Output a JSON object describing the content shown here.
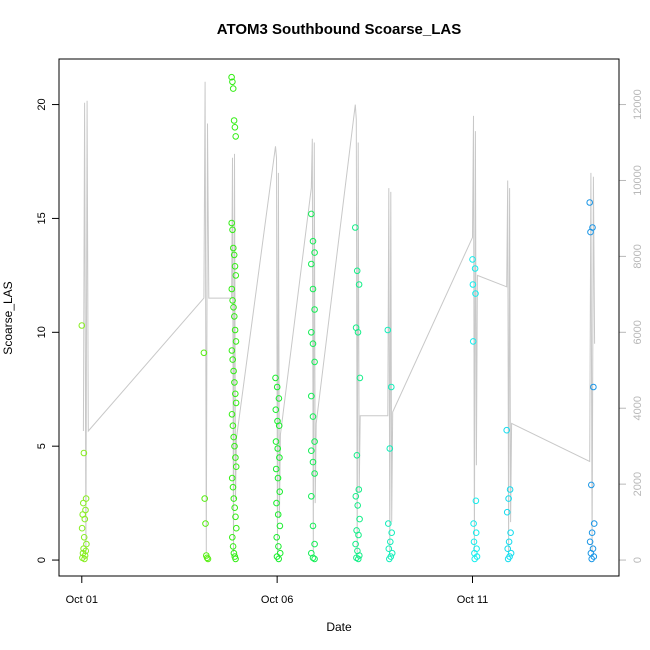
{
  "chart_data": {
    "type": "scatter",
    "title": "ATOM3 Southbound Scoarse_LAS",
    "xlabel": "Date",
    "ylabel": "Scoarse_LAS",
    "xlim": [
      "2014-09-30T10:00",
      "2014-10-14T18:00"
    ],
    "ylim": [
      -0.7,
      22
    ],
    "x_ticks": [
      {
        "value": "2014-10-01T00:00",
        "label": "Oct 01"
      },
      {
        "value": "2014-10-06T00:00",
        "label": "Oct 06"
      },
      {
        "value": "2014-10-11T00:00",
        "label": "Oct 11"
      }
    ],
    "y_ticks": [
      0,
      5,
      10,
      15,
      20
    ],
    "y2_ticks": [
      0,
      2000,
      4000,
      6000,
      8000,
      10000,
      12000
    ],
    "y2lim": [
      -420,
      13200
    ],
    "grid": false,
    "colors": {
      "primary_axis": "#000000",
      "secondary_axis": "#b8b8b8",
      "secondary_line": "#c8c8c8"
    },
    "bursts": [
      {
        "start": "2014-10-01T00:00",
        "values": [
          10.3,
          4.7,
          2.7,
          2.5,
          2.2,
          2.0,
          1.8,
          1.4,
          1.0,
          0.7,
          0.5,
          0.4,
          0.3,
          0.2,
          0.1,
          0.05
        ],
        "color": "#88ee22"
      },
      {
        "start": "2014-10-04T03:00",
        "values": [
          9.1,
          2.7,
          1.6,
          0.2,
          0.1,
          0.05
        ],
        "color": "#55ee10"
      },
      {
        "start": "2014-10-04T20:00",
        "values": [
          21.2,
          21.0,
          20.7,
          19.3,
          19.0,
          18.6,
          14.8,
          14.5,
          13.7,
          13.4,
          12.9,
          12.5,
          11.9,
          11.4,
          11.1,
          10.7,
          10.1,
          9.6,
          9.2,
          8.8,
          8.3,
          7.8,
          7.3,
          6.9,
          6.4,
          5.9,
          5.4,
          5.0,
          4.5,
          4.1,
          3.6,
          3.2,
          2.7,
          2.3,
          1.9,
          1.4,
          1.0,
          0.6,
          0.3,
          0.15,
          0.05
        ],
        "color": "#33ee14"
      },
      {
        "start": "2014-10-05T23:00",
        "values": [
          8.0,
          7.6,
          7.1,
          6.6,
          6.1,
          5.9,
          5.2,
          4.9,
          4.5,
          4.0,
          3.6,
          3.0,
          2.5,
          2.0,
          1.5,
          1.0,
          0.6,
          0.3,
          0.15,
          0.05
        ],
        "color": "#18ee2c"
      },
      {
        "start": "2014-10-06T21:00",
        "values": [
          15.2,
          14.0,
          13.5,
          13.0,
          11.9,
          11.0,
          10.0,
          9.5,
          8.7,
          7.2,
          6.3,
          5.2,
          4.8,
          4.3,
          3.8,
          2.8,
          1.5,
          0.7,
          0.3,
          0.1,
          0.05
        ],
        "color": "#14ee55"
      },
      {
        "start": "2014-10-08T00:00",
        "values": [
          14.6,
          12.7,
          12.1,
          10.2,
          10.0,
          8.0,
          4.6,
          3.1,
          2.8,
          2.4,
          1.8,
          1.3,
          1.1,
          0.7,
          0.4,
          0.2,
          0.1,
          0.05
        ],
        "color": "#14ee88"
      },
      {
        "start": "2014-10-08T20:00",
        "values": [
          10.1,
          7.6,
          4.9,
          1.6,
          1.2,
          0.8,
          0.5,
          0.3,
          0.15,
          0.05
        ],
        "color": "#14eebb"
      },
      {
        "start": "2014-10-11T00:00",
        "values": [
          13.2,
          12.8,
          12.1,
          11.7,
          9.6,
          2.6,
          1.6,
          1.2,
          0.8,
          0.5,
          0.3,
          0.15,
          0.05
        ],
        "color": "#14eeee"
      },
      {
        "start": "2014-10-11T21:00",
        "values": [
          5.7,
          3.1,
          2.7,
          2.1,
          1.2,
          0.8,
          0.5,
          0.3,
          0.15,
          0.05
        ],
        "color": "#14dcee"
      },
      {
        "start": "2014-10-14T00:00",
        "values": [
          15.7,
          14.6,
          14.4,
          7.6,
          3.3,
          1.6,
          1.2,
          0.8,
          0.5,
          0.3,
          0.15,
          0.05
        ],
        "color": "#1a96e6"
      }
    ],
    "secondary_series_y2": [
      {
        "start": "2014-10-01T01:00",
        "values": [
          3400,
          12050,
          200,
          12100,
          3400
        ]
      },
      {
        "start": "2014-10-04T03:00",
        "values": [
          6900,
          12600,
          200,
          11500,
          6900
        ]
      },
      {
        "start": "2014-10-04T20:00",
        "values": [
          6900,
          10600,
          200,
          10700,
          1600,
          3200
        ]
      },
      {
        "start": "2014-10-05T23:00",
        "values": [
          10900,
          10600,
          200,
          10200,
          1100,
          3300
        ]
      },
      {
        "start": "2014-10-06T21:00",
        "values": [
          9800,
          11100,
          200,
          11000,
          1500,
          3600
        ]
      },
      {
        "start": "2014-10-08T00:00",
        "values": [
          12000,
          11600,
          200,
          11000,
          1800,
          3800
        ]
      },
      {
        "start": "2014-10-08T20:00",
        "values": [
          3800,
          9800,
          200,
          9700,
          1000,
          3900
        ]
      },
      {
        "start": "2014-10-11T00:00",
        "values": [
          8500,
          11700,
          200,
          11300,
          2500,
          7500
        ]
      },
      {
        "start": "2014-10-11T21:00",
        "values": [
          7200,
          10000,
          200,
          9800,
          1000,
          3600
        ]
      },
      {
        "start": "2014-10-14T00:00",
        "values": [
          2600,
          10200,
          200,
          10100,
          5700
        ]
      }
    ]
  }
}
